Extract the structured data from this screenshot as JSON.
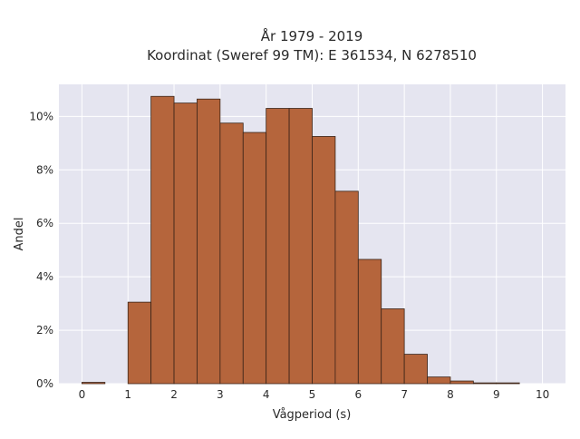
{
  "chart_data": {
    "type": "bar",
    "title_lines": [
      "År 1979 - 2019",
      "Koordinat (Sweref 99 TM): E 361534, N 6278510"
    ],
    "xlabel": "Vågperiod (s)",
    "ylabel": "Andel",
    "bin_width": 0.5,
    "bins": [
      {
        "x0": 0.0,
        "x1": 0.5,
        "value": 0.05
      },
      {
        "x0": 0.5,
        "x1": 1.0,
        "value": 0.0
      },
      {
        "x0": 1.0,
        "x1": 1.5,
        "value": 3.05
      },
      {
        "x0": 1.5,
        "x1": 2.0,
        "value": 10.75
      },
      {
        "x0": 2.0,
        "x1": 2.5,
        "value": 10.5
      },
      {
        "x0": 2.5,
        "x1": 3.0,
        "value": 10.65
      },
      {
        "x0": 3.0,
        "x1": 3.5,
        "value": 9.75
      },
      {
        "x0": 3.5,
        "x1": 4.0,
        "value": 9.4
      },
      {
        "x0": 4.0,
        "x1": 4.5,
        "value": 10.3
      },
      {
        "x0": 4.5,
        "x1": 5.0,
        "value": 10.3
      },
      {
        "x0": 5.0,
        "x1": 5.5,
        "value": 9.25
      },
      {
        "x0": 5.5,
        "x1": 6.0,
        "value": 7.2
      },
      {
        "x0": 6.0,
        "x1": 6.5,
        "value": 4.65
      },
      {
        "x0": 6.5,
        "x1": 7.0,
        "value": 2.8
      },
      {
        "x0": 7.0,
        "x1": 7.5,
        "value": 1.1
      },
      {
        "x0": 7.5,
        "x1": 8.0,
        "value": 0.25
      },
      {
        "x0": 8.0,
        "x1": 8.5,
        "value": 0.1
      },
      {
        "x0": 8.5,
        "x1": 9.0,
        "value": 0.03
      },
      {
        "x0": 9.0,
        "x1": 9.5,
        "value": 0.03
      },
      {
        "x0": 9.5,
        "x1": 10.0,
        "value": 0.0
      }
    ],
    "xlim": [
      -0.5,
      10.5
    ],
    "ylim": [
      0,
      11.2
    ],
    "x_ticks": [
      0,
      1,
      2,
      3,
      4,
      5,
      6,
      7,
      8,
      9,
      10
    ],
    "x_tick_labels": [
      "0",
      "1",
      "2",
      "3",
      "4",
      "5",
      "6",
      "7",
      "8",
      "9",
      "10"
    ],
    "y_ticks": [
      0,
      2,
      4,
      6,
      8,
      10
    ],
    "y_tick_labels": [
      "0%",
      "2%",
      "4%",
      "6%",
      "8%",
      "10%"
    ],
    "grid": true,
    "colors": {
      "bar_fill": "#b5653c",
      "bar_edge": "#3a2418",
      "plot_background": "#e5e5f0",
      "grid": "#ffffff"
    }
  }
}
